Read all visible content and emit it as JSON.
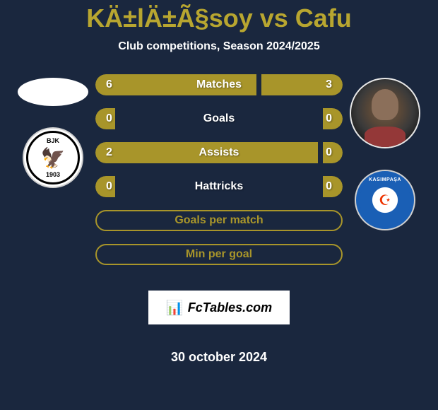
{
  "title": "KÄ±lÄ±Ã§soy vs Cafu",
  "subtitle": "Club competitions, Season 2024/2025",
  "date": "30 october 2024",
  "fctables_label": "FcTables.com",
  "colors": {
    "background": "#1a273e",
    "bar_fill": "#a8952a",
    "title_color": "#b8a630",
    "text_color": "#ffffff",
    "bjk_primary": "#000000",
    "bjk_bg": "#ffffff",
    "kasimpasa_primary": "#1a5fb5",
    "kasimpasa_accent": "#e30013"
  },
  "player_left": {
    "name": "KÄ±lÄ±Ã§soy",
    "club": "Beşiktaş",
    "club_abbr": "BJK",
    "club_year": "1903"
  },
  "player_right": {
    "name": "Cafu",
    "club": "Kasımpaşa",
    "club_label": "KASIMPAŞA"
  },
  "stats": [
    {
      "label": "Matches",
      "left_value": "6",
      "right_value": "3",
      "left_pct": 65,
      "right_pct": 33,
      "type": "split"
    },
    {
      "label": "Goals",
      "left_value": "0",
      "right_value": "0",
      "left_pct": 8,
      "right_pct": 8,
      "type": "split"
    },
    {
      "label": "Assists",
      "left_value": "2",
      "right_value": "0",
      "left_pct": 90,
      "right_pct": 8,
      "type": "split"
    },
    {
      "label": "Hattricks",
      "left_value": "0",
      "right_value": "0",
      "left_pct": 8,
      "right_pct": 8,
      "type": "split"
    },
    {
      "label": "Goals per match",
      "type": "outline"
    },
    {
      "label": "Min per goal",
      "type": "outline"
    }
  ]
}
